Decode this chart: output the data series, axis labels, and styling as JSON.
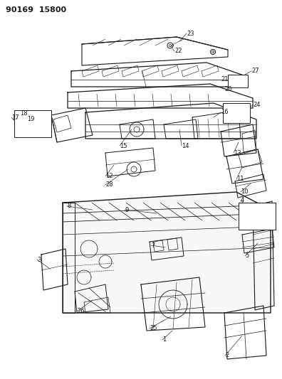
{
  "title": "90169  15800",
  "bg_color": "#ffffff",
  "line_color": "#1a1a1a",
  "fig_width": 3.96,
  "fig_height": 5.33,
  "dpi": 100
}
